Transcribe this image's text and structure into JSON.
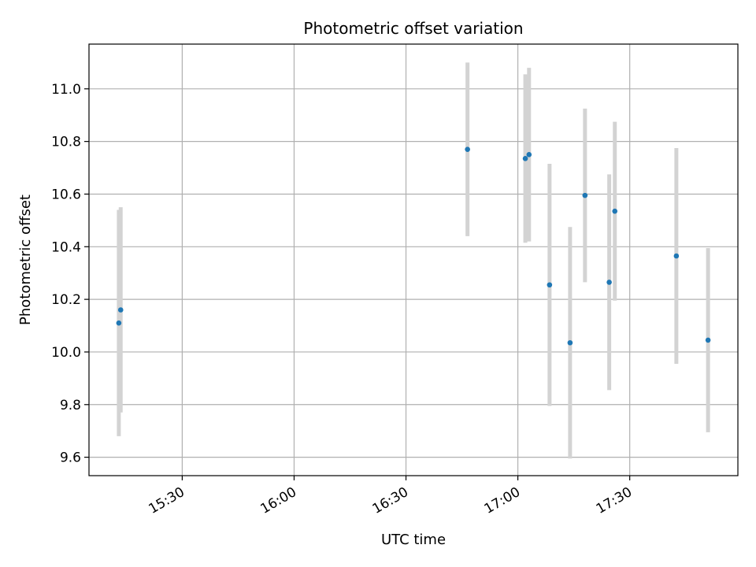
{
  "chart_data": {
    "type": "scatter",
    "title": "Photometric offset variation",
    "xlabel": "UTC time",
    "ylabel": "Photometric offset",
    "x_type": "time",
    "xlim": [
      "15:05",
      "17:59"
    ],
    "ylim": [
      9.53,
      11.17
    ],
    "x_ticks": [
      "15:30",
      "16:00",
      "16:30",
      "17:00",
      "17:30"
    ],
    "y_ticks": [
      9.6,
      9.8,
      10.0,
      10.2,
      10.4,
      10.6,
      10.8,
      11.0
    ],
    "y_tick_labels": [
      "9.6",
      "9.8",
      "10.0",
      "10.2",
      "10.4",
      "10.6",
      "10.8",
      "11.0"
    ],
    "grid": true,
    "colors": {
      "point": "#1f77b4",
      "errorbar": "#d3d3d3",
      "grid": "#b0b0b0"
    },
    "series": [
      {
        "points": [
          {
            "x": "15:13:00",
            "y": 10.11,
            "err": 0.43
          },
          {
            "x": "15:13:30",
            "y": 10.16,
            "err": 0.39
          },
          {
            "x": "16:46:30",
            "y": 10.77,
            "err": 0.33
          },
          {
            "x": "17:02:00",
            "y": 10.735,
            "err": 0.32
          },
          {
            "x": "17:03:00",
            "y": 10.75,
            "err": 0.33
          },
          {
            "x": "17:08:30",
            "y": 10.255,
            "err": 0.46
          },
          {
            "x": "17:14:00",
            "y": 10.035,
            "err": 0.44
          },
          {
            "x": "17:18:00",
            "y": 10.595,
            "err": 0.33
          },
          {
            "x": "17:24:30",
            "y": 10.265,
            "err": 0.41
          },
          {
            "x": "17:26:00",
            "y": 10.535,
            "err": 0.34
          },
          {
            "x": "17:42:30",
            "y": 10.365,
            "err": 0.41
          },
          {
            "x": "17:51:00",
            "y": 10.045,
            "err": 0.35
          }
        ]
      }
    ]
  }
}
